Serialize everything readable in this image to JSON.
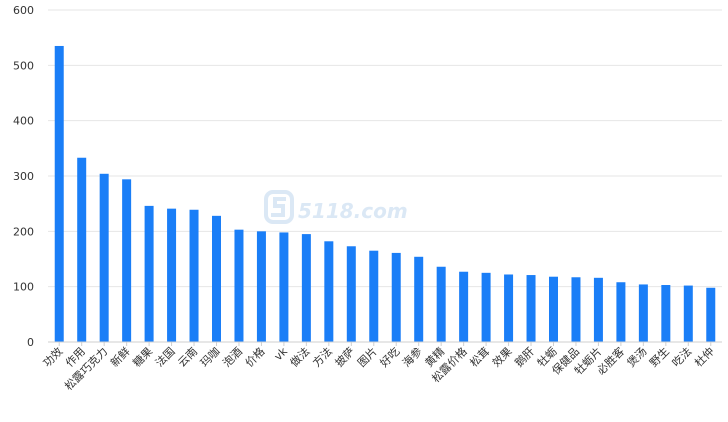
{
  "chart_data": {
    "type": "bar",
    "categories": [
      "功效",
      "作用",
      "松露巧克力",
      "新鲜",
      "糖果",
      "法国",
      "云南",
      "玛咖",
      "泡酒",
      "价格",
      "vk",
      "做法",
      "方法",
      "披萨",
      "图片",
      "好吃",
      "海参",
      "黄精",
      "松露价格",
      "松茸",
      "效果",
      "鹅肝",
      "牡蛎",
      "保健品",
      "牡蛎片",
      "必胜客",
      "煲汤",
      "野生",
      "吃法",
      "杜仲"
    ],
    "values": [
      535,
      333,
      304,
      294,
      246,
      241,
      239,
      228,
      203,
      200,
      198,
      195,
      182,
      173,
      165,
      161,
      154,
      136,
      127,
      125,
      122,
      121,
      118,
      117,
      116,
      108,
      104,
      103,
      102,
      98
    ],
    "ylim": [
      0,
      600
    ],
    "yticks": [
      0,
      100,
      200,
      300,
      400,
      500,
      600
    ],
    "title": "",
    "xlabel": "",
    "ylabel": "",
    "grid": true,
    "legend": "none",
    "bar_color": "#1a7ef7"
  },
  "watermark": {
    "text": "5118.com",
    "icon": "s-logo-icon",
    "color": "#dbe8f5"
  }
}
